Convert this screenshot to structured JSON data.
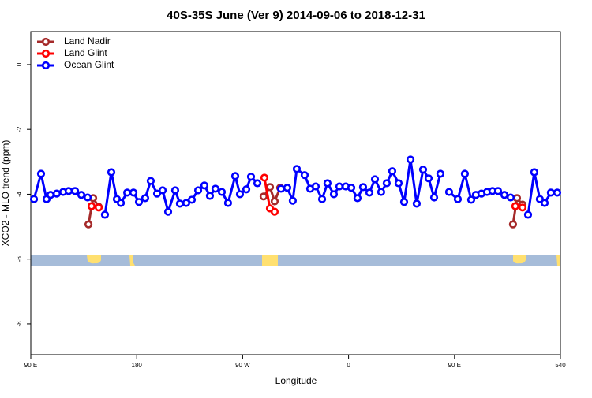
{
  "chart_data": {
    "type": "line",
    "title": "40S-35S June (Ver 9)   2014-09-06 to 2018-12-31",
    "x_label": "Longitude",
    "y_label": "XCO2 - MLO trend (ppm)",
    "xlim": [
      90,
      540
    ],
    "ylim": [
      -8.95,
      1.02
    ],
    "xticks": [
      {
        "value": 90,
        "label": "90 E"
      },
      180,
      {
        "value": 270,
        "label": "90 W"
      },
      {
        "value": 360,
        "label": "0"
      },
      {
        "value": 450,
        "label": "90 E"
      },
      540
    ],
    "yticks": [
      0,
      -2,
      -4,
      -6,
      -8
    ],
    "legend": "top-left",
    "series": [
      {
        "name": "Land Nadir",
        "color": "#a52a2a",
        "x": [
          139.0,
          143.0,
          147.7,
          240,
          287.8,
          293.2,
          297.2,
          301.9,
          400,
          499.7,
          503.1,
          507.8
        ],
        "values": [
          -4.93,
          -4.12,
          -4.39,
          null,
          -4.07,
          -3.78,
          -4.22,
          -3.8,
          null,
          -4.93,
          -4.12,
          -4.32
        ]
      },
      {
        "name": "Land Glint",
        "color": "#ff0000",
        "x": [
          141.6,
          147.7,
          240,
          288.5,
          293.2,
          297.2,
          400,
          501.7,
          507.8
        ],
        "values": [
          -4.37,
          -4.41,
          null,
          -3.49,
          -4.44,
          -4.54,
          null,
          -4.37,
          -4.41
        ]
      },
      {
        "name": "Ocean Glint",
        "color": "#0000ff",
        "x": [
          92.7,
          98.7,
          103.4,
          106.8,
          112.1,
          117.5,
          122.2,
          127.6,
          132.9,
          138.3,
          145,
          153.0,
          158.4,
          163.1,
          166.5,
          171.9,
          177.2,
          181.9,
          187.2,
          191.9,
          197.3,
          202.0,
          206.7,
          212.7,
          216.7,
          222.1,
          226.8,
          232.2,
          237.5,
          242.2,
          246.9,
          252.3,
          257.6,
          263.7,
          267.7,
          273.1,
          277.1,
          282.5,
          290,
          302.6,
          307.9,
          312.6,
          316.0,
          322.7,
          327.4,
          332.1,
          337.5,
          342.1,
          347.5,
          352.2,
          357.6,
          362.3,
          367.6,
          372.3,
          377.7,
          382.4,
          387.7,
          392.4,
          397.1,
          402.5,
          407.2,
          412.6,
          417.9,
          423.3,
          428.0,
          432.7,
          438.0,
          444,
          445.4,
          452.8,
          458.8,
          464.2,
          468.2,
          472.9,
          477.6,
          482.3,
          487.0,
          492.4,
          497.7,
          505,
          512.5,
          517.8,
          522.5,
          526.6,
          531.9,
          537.3
        ],
        "values": [
          -4.15,
          -3.37,
          -4.15,
          -4.02,
          -3.98,
          -3.93,
          -3.9,
          -3.9,
          -4.02,
          -4.1,
          null,
          -4.63,
          -3.32,
          -4.15,
          -4.27,
          -3.95,
          -3.95,
          -4.24,
          -4.12,
          -3.59,
          -3.98,
          -3.88,
          -4.54,
          -3.88,
          -4.29,
          -4.27,
          -4.17,
          -3.88,
          -3.73,
          -4.05,
          -3.83,
          -3.93,
          -4.27,
          -3.44,
          -4.0,
          -3.85,
          -3.46,
          -3.66,
          null,
          -3.83,
          -3.8,
          -4.2,
          -3.22,
          -3.41,
          -3.83,
          -3.76,
          -4.15,
          -3.66,
          -4.0,
          -3.76,
          -3.76,
          -3.8,
          -4.12,
          -3.78,
          -3.95,
          -3.54,
          -3.93,
          -3.66,
          -3.29,
          -3.66,
          -4.24,
          -2.93,
          -4.29,
          -3.24,
          -3.51,
          -4.1,
          -3.37,
          null,
          -3.93,
          -4.15,
          -3.37,
          -4.17,
          -4.02,
          -3.98,
          -3.93,
          -3.9,
          -3.9,
          -4.02,
          -4.1,
          null,
          -4.63,
          -3.32,
          -4.15,
          -4.27,
          -3.95,
          -3.95
        ]
      }
    ]
  }
}
